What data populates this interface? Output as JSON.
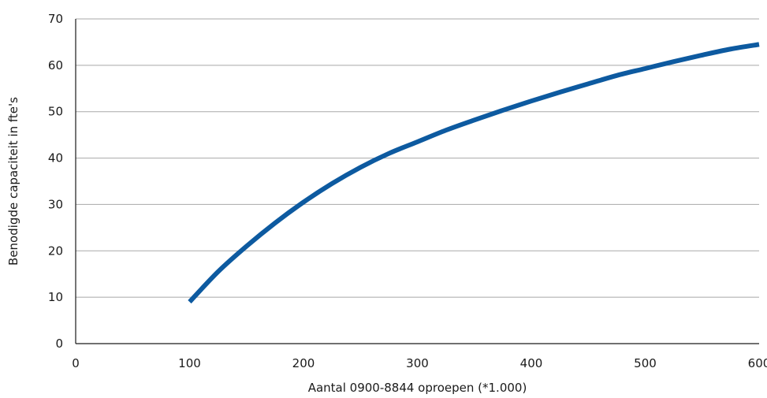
{
  "chart_data": {
    "type": "line",
    "title": "",
    "xlabel": "Aantal 0900-8844 oproepen (*1.000)",
    "ylabel": "Benodigde capaciteit in fte's",
    "xlim": [
      0,
      600
    ],
    "ylim": [
      0,
      70
    ],
    "xticks": [
      0,
      100,
      200,
      300,
      400,
      500,
      600
    ],
    "yticks": [
      0,
      10,
      20,
      30,
      40,
      50,
      60,
      70
    ],
    "grid": "horizontal",
    "legend": "none",
    "series": [
      {
        "color": "#0d5aa0",
        "x": [
          100,
          125,
          150,
          175,
          200,
          225,
          250,
          275,
          300,
          325,
          350,
          375,
          400,
          425,
          450,
          475,
          500,
          525,
          550,
          575,
          600
        ],
        "y": [
          9,
          15.5,
          21,
          26,
          30.5,
          34.5,
          38,
          41,
          43.5,
          46,
          48.2,
          50.3,
          52.3,
          54.2,
          56,
          57.8,
          59.3,
          60.8,
          62.2,
          63.5,
          64.5
        ]
      }
    ],
    "colors": {
      "line": "#0d5aa0",
      "grid": "#a8a8a8",
      "axis": "#1a1a1a",
      "text": "#1a1a1a"
    }
  }
}
